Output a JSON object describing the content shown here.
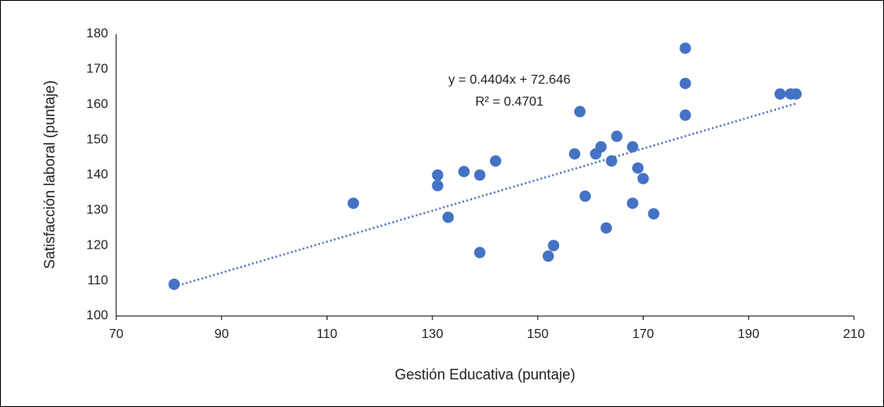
{
  "chart_data": {
    "type": "scatter",
    "x_label": "Gestión Educativa (puntaje)",
    "y_label": "Satisfacción laboral (puntaje)",
    "series": [
      {
        "color": "#4472c4",
        "x": [
          81,
          115,
          131,
          131,
          133,
          136,
          139,
          139,
          142,
          152,
          153,
          157,
          158,
          159,
          161,
          162,
          163,
          164,
          165,
          168,
          168,
          169,
          170,
          172,
          178,
          178,
          178,
          196,
          198,
          199
        ],
        "values": [
          109,
          132,
          140,
          137,
          128,
          141,
          140,
          118,
          144,
          117,
          120,
          146,
          158,
          134,
          146,
          148,
          125,
          144,
          151,
          148,
          132,
          142,
          139,
          129,
          176,
          166,
          157,
          163,
          163,
          163
        ]
      }
    ],
    "trendline": {
      "slope": 0.4404,
      "intercept": 72.646,
      "equation": "y = 0.4404x + 72.646",
      "r2_label": "R² = 0.4701",
      "color": "#4472c4"
    },
    "xlim": [
      70,
      210
    ],
    "xticks": [
      70,
      90,
      110,
      130,
      150,
      170,
      190,
      210
    ],
    "ylim": [
      100,
      180
    ],
    "yticks": [
      100,
      110,
      120,
      130,
      140,
      150,
      160,
      170,
      180
    ],
    "grid": false
  }
}
